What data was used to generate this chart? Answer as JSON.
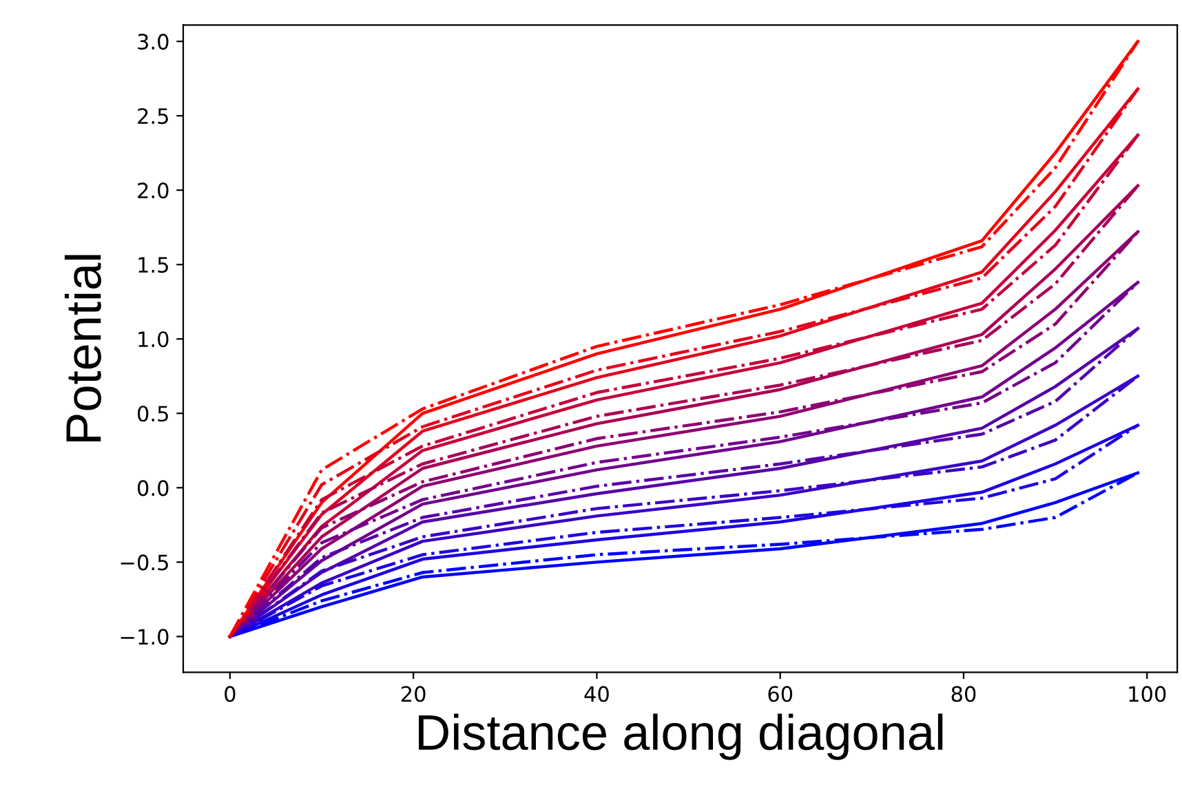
{
  "chart_data": {
    "type": "line",
    "xlabel": "Distance along diagonal",
    "ylabel": "Potential",
    "xlim": [
      -5.1,
      103.3
    ],
    "ylim": [
      -1.24,
      3.11
    ],
    "xticks": [
      0,
      20,
      40,
      60,
      80,
      100
    ],
    "yticks": [
      {
        "value": -1.0,
        "label": "−1.0"
      },
      {
        "value": -0.5,
        "label": "−0.5"
      },
      {
        "value": 0.0,
        "label": "0.0"
      },
      {
        "value": 0.5,
        "label": "0.5"
      },
      {
        "value": 1.0,
        "label": "1.0"
      },
      {
        "value": 1.5,
        "label": "1.5"
      },
      {
        "value": 2.0,
        "label": "2.0"
      },
      {
        "value": 2.5,
        "label": "2.5"
      },
      {
        "value": 3.0,
        "label": "3.0"
      }
    ],
    "grid": false,
    "legend": false,
    "marker": "none",
    "series": [
      {
        "color": "#0000ff",
        "line_style": "solid",
        "x": [
          0,
          10,
          21,
          40,
          60,
          82,
          90,
          99
        ],
        "values": [
          -1,
          -0.8,
          -0.6,
          -0.5,
          -0.41,
          -0.24,
          -0.1,
          0.1
        ]
      },
      {
        "color": "#1c00e3",
        "line_style": "solid",
        "x": [
          0,
          10,
          21,
          40,
          60,
          82,
          90,
          99
        ],
        "values": [
          -1,
          -0.72,
          -0.48,
          -0.35,
          -0.23,
          -0.03,
          0.16,
          0.42
        ]
      },
      {
        "color": "#3900c6",
        "line_style": "solid",
        "x": [
          0,
          10,
          21,
          40,
          60,
          82,
          90,
          99
        ],
        "values": [
          -1,
          -0.64,
          -0.36,
          -0.19,
          -0.05,
          0.18,
          0.42,
          0.75
        ]
      },
      {
        "color": "#5500aa",
        "line_style": "solid",
        "x": [
          0,
          10,
          21,
          40,
          60,
          82,
          90,
          99
        ],
        "values": [
          -1,
          -0.57,
          -0.23,
          -0.04,
          0.13,
          0.4,
          0.68,
          1.07
        ]
      },
      {
        "color": "#71008e",
        "line_style": "solid",
        "x": [
          0,
          10,
          21,
          40,
          60,
          82,
          90,
          99
        ],
        "values": [
          -1,
          -0.49,
          -0.11,
          0.12,
          0.31,
          0.61,
          0.94,
          1.38
        ]
      },
      {
        "color": "#8e0071",
        "line_style": "solid",
        "x": [
          0,
          10,
          21,
          40,
          60,
          82,
          90,
          99
        ],
        "values": [
          -1,
          -0.41,
          0.01,
          0.28,
          0.48,
          0.82,
          1.2,
          1.72
        ]
      },
      {
        "color": "#aa0055",
        "line_style": "solid",
        "x": [
          0,
          10,
          21,
          40,
          60,
          82,
          90,
          99
        ],
        "values": [
          -1,
          -0.33,
          0.13,
          0.43,
          0.66,
          1.03,
          1.47,
          2.03
        ]
      },
      {
        "color": "#c60039",
        "line_style": "solid",
        "x": [
          0,
          10,
          21,
          40,
          60,
          82,
          90,
          99
        ],
        "values": [
          -1,
          -0.26,
          0.25,
          0.59,
          0.84,
          1.24,
          1.73,
          2.37
        ]
      },
      {
        "color": "#e3001c",
        "line_style": "solid",
        "x": [
          0,
          10,
          21,
          40,
          60,
          82,
          90,
          99
        ],
        "values": [
          -1,
          -0.18,
          0.38,
          0.74,
          1.02,
          1.45,
          1.99,
          2.68
        ]
      },
      {
        "color": "#ff0000",
        "line_style": "solid",
        "x": [
          0,
          10,
          21,
          40,
          60,
          82,
          90,
          99
        ],
        "values": [
          -1,
          -0.1,
          0.5,
          0.9,
          1.2,
          1.66,
          2.25,
          3.0
        ]
      },
      {
        "color": "#0000ff",
        "line_style": "dashdot",
        "x": [
          0,
          10,
          21,
          40,
          60,
          82,
          90,
          99
        ],
        "values": [
          -1,
          -0.76,
          -0.57,
          -0.45,
          -0.38,
          -0.28,
          -0.2,
          0.1
        ]
      },
      {
        "color": "#1c00e3",
        "line_style": "dashdot",
        "x": [
          0,
          10,
          21,
          40,
          60,
          82,
          90,
          99
        ],
        "values": [
          -1,
          -0.66,
          -0.45,
          -0.3,
          -0.2,
          -0.07,
          0.06,
          0.42
        ]
      },
      {
        "color": "#3900c6",
        "line_style": "dashdot",
        "x": [
          0,
          10,
          21,
          40,
          60,
          82,
          90,
          99
        ],
        "values": [
          -1,
          -0.56,
          -0.33,
          -0.14,
          -0.02,
          0.14,
          0.32,
          0.75
        ]
      },
      {
        "color": "#5500aa",
        "line_style": "dashdot",
        "x": [
          0,
          10,
          21,
          40,
          60,
          82,
          90,
          99
        ],
        "values": [
          -1,
          -0.47,
          -0.2,
          0.01,
          0.16,
          0.36,
          0.58,
          1.07
        ]
      },
      {
        "color": "#71008e",
        "line_style": "dashdot",
        "x": [
          0,
          10,
          21,
          40,
          60,
          82,
          90,
          99
        ],
        "values": [
          -1,
          -0.37,
          -0.08,
          0.17,
          0.34,
          0.57,
          0.84,
          1.38
        ]
      },
      {
        "color": "#8e0071",
        "line_style": "dashdot",
        "x": [
          0,
          10,
          21,
          40,
          60,
          82,
          90,
          99
        ],
        "values": [
          -1,
          -0.27,
          0.04,
          0.33,
          0.51,
          0.78,
          1.1,
          1.72
        ]
      },
      {
        "color": "#aa0055",
        "line_style": "dashdot",
        "x": [
          0,
          10,
          21,
          40,
          60,
          82,
          90,
          99
        ],
        "values": [
          -1,
          -0.17,
          0.16,
          0.48,
          0.69,
          0.99,
          1.37,
          2.03
        ]
      },
      {
        "color": "#c60039",
        "line_style": "dashdot",
        "x": [
          0,
          10,
          21,
          40,
          60,
          82,
          90,
          99
        ],
        "values": [
          -1,
          -0.08,
          0.28,
          0.64,
          0.87,
          1.2,
          1.63,
          2.37
        ]
      },
      {
        "color": "#e3001c",
        "line_style": "dashdot",
        "x": [
          0,
          10,
          21,
          40,
          60,
          82,
          90,
          99
        ],
        "values": [
          -1,
          0.02,
          0.41,
          0.79,
          1.05,
          1.41,
          1.89,
          2.68
        ]
      },
      {
        "color": "#ff0000",
        "line_style": "dashdot",
        "x": [
          0,
          10,
          21,
          40,
          60,
          82,
          90,
          99
        ],
        "values": [
          -1,
          0.12,
          0.53,
          0.95,
          1.23,
          1.62,
          2.15,
          3.0
        ]
      }
    ]
  }
}
